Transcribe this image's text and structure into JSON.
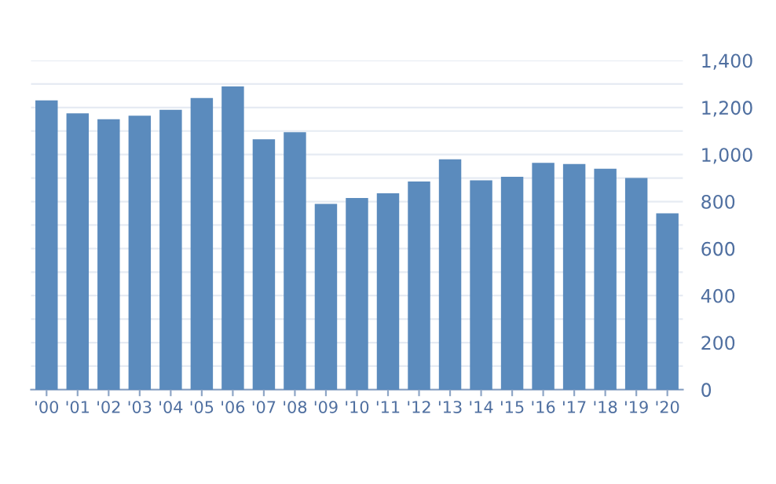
{
  "chart_data": {
    "type": "bar",
    "categories": [
      "'00",
      "'01",
      "'02",
      "'03",
      "'04",
      "'05",
      "'06",
      "'07",
      "'08",
      "'09",
      "'10",
      "'11",
      "'12",
      "'13",
      "'14",
      "'15",
      "'16",
      "'17",
      "'18",
      "'19",
      "'20"
    ],
    "values": [
      1230,
      1175,
      1150,
      1165,
      1190,
      1240,
      1290,
      1065,
      1095,
      790,
      815,
      835,
      885,
      980,
      890,
      905,
      965,
      960,
      940,
      900,
      750
    ],
    "color": "#5b8bbd",
    "ylim": [
      0,
      1400
    ],
    "yticks": [
      0,
      {
        "value": 100,
        "label": null
      },
      200,
      {
        "value": 300,
        "label": null
      },
      400,
      {
        "value": 500,
        "label": null
      },
      600,
      {
        "value": 700,
        "label": null
      },
      800,
      {
        "value": 900,
        "label": null
      },
      {
        "value": 1000,
        "label": "1,000"
      },
      {
        "value": 1100,
        "label": null
      },
      {
        "value": 1200,
        "label": "1,200"
      },
      {
        "value": 1300,
        "label": null
      },
      {
        "value": 1400,
        "label": "1,400"
      }
    ],
    "grid": "y"
  }
}
